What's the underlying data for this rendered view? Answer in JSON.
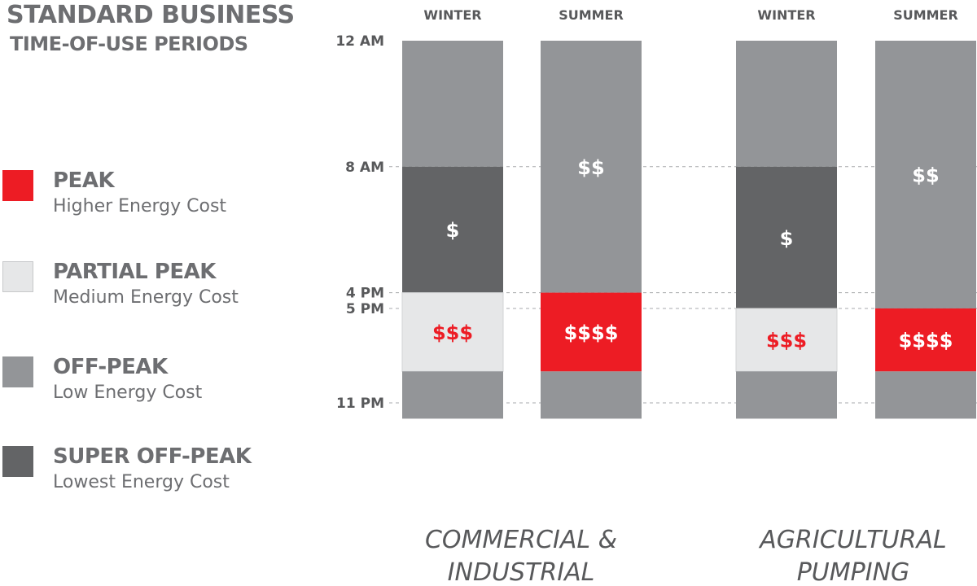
{
  "title": {
    "line1": "STANDARD BUSINESS",
    "line2": "TIME-OF-USE PERIODS"
  },
  "legend": [
    {
      "name": "PEAK",
      "desc": "Higher Energy Cost",
      "color": "#ed1c24"
    },
    {
      "name": "PARTIAL PEAK",
      "desc": "Medium Energy Cost",
      "color": "#e6e7e8"
    },
    {
      "name": "OFF-PEAK",
      "desc": "Low Energy Cost",
      "color": "#939598"
    },
    {
      "name": "SUPER OFF-PEAK",
      "desc": "Lowest Energy Cost",
      "color": "#636466"
    }
  ],
  "colors": {
    "peak": "#ed1c24",
    "partial_peak": "#e6e7e8",
    "off_peak": "#939598",
    "super_off_peak": "#636466",
    "text": "#6d6e71"
  },
  "chart_data": {
    "type": "bar",
    "y_axis": {
      "unit": "hour of day",
      "range": [
        0,
        24
      ],
      "ticks": [
        {
          "hour": 0,
          "label": "12 AM"
        },
        {
          "hour": 8,
          "label": "8 AM"
        },
        {
          "hour": 16,
          "label": "4 PM"
        },
        {
          "hour": 17,
          "label": "5 PM"
        },
        {
          "hour": 23,
          "label": "11 PM"
        }
      ]
    },
    "groups": [
      {
        "label_lines": [
          "COMMERCIAL &",
          "INDUSTRIAL"
        ],
        "columns": [
          {
            "season": "WINTER",
            "segments": [
              {
                "start": 0,
                "end": 8,
                "period": "off_peak",
                "label": ""
              },
              {
                "start": 8,
                "end": 16,
                "period": "super_off_peak",
                "label": "$"
              },
              {
                "start": 16,
                "end": 21,
                "period": "partial_peak",
                "label": "$$$"
              },
              {
                "start": 21,
                "end": 24,
                "period": "off_peak",
                "label": ""
              }
            ]
          },
          {
            "season": "SUMMER",
            "segments": [
              {
                "start": 0,
                "end": 16,
                "period": "off_peak",
                "label": "$$"
              },
              {
                "start": 16,
                "end": 21,
                "period": "peak",
                "label": "$$$$"
              },
              {
                "start": 21,
                "end": 24,
                "period": "off_peak",
                "label": ""
              }
            ]
          }
        ]
      },
      {
        "label_lines": [
          "AGRICULTURAL",
          "PUMPING"
        ],
        "columns": [
          {
            "season": "WINTER",
            "segments": [
              {
                "start": 0,
                "end": 8,
                "period": "off_peak",
                "label": ""
              },
              {
                "start": 8,
                "end": 17,
                "period": "super_off_peak",
                "label": "$"
              },
              {
                "start": 17,
                "end": 21,
                "period": "partial_peak",
                "label": "$$$"
              },
              {
                "start": 21,
                "end": 24,
                "period": "off_peak",
                "label": ""
              }
            ]
          },
          {
            "season": "SUMMER",
            "segments": [
              {
                "start": 0,
                "end": 17,
                "period": "off_peak",
                "label": "$$"
              },
              {
                "start": 17,
                "end": 21,
                "period": "peak",
                "label": "$$$$"
              },
              {
                "start": 21,
                "end": 24,
                "period": "off_peak",
                "label": ""
              }
            ]
          }
        ]
      }
    ]
  }
}
